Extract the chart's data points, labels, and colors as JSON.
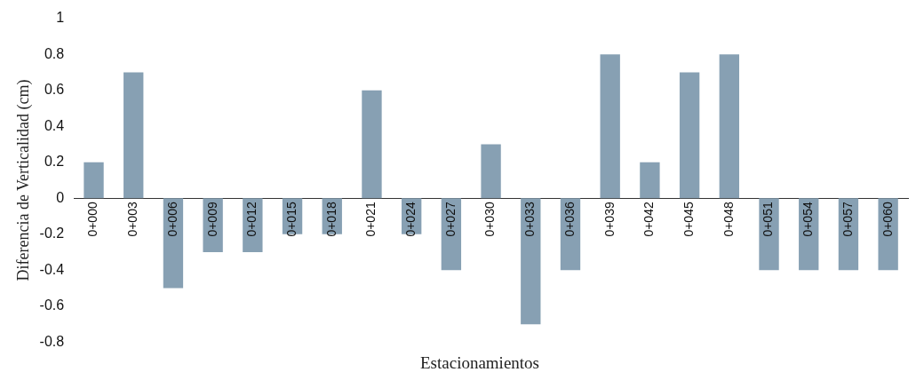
{
  "chart_data": {
    "type": "bar",
    "xlabel": "Estacionamientos",
    "ylabel": "Diferencia de Verticalidad (cm)",
    "categories": [
      "0+000",
      "0+003",
      "0+006",
      "0+009",
      "0+012",
      "0+015",
      "0+018",
      "0+021",
      "0+024",
      "0+027",
      "0+030",
      "0+033",
      "0+036",
      "0+039",
      "0+042",
      "0+045",
      "0+048",
      "0+051",
      "0+054",
      "0+057",
      "0+060"
    ],
    "values": [
      0.2,
      0.7,
      -0.5,
      -0.3,
      -0.3,
      -0.2,
      -0.2,
      0.6,
      -0.2,
      -0.4,
      0.3,
      -0.7,
      -0.4,
      0.8,
      0.2,
      0.7,
      0.8,
      -0.4,
      -0.4,
      -0.4,
      -0.4
    ],
    "color": "#87a0b3",
    "ylim": [
      -0.8,
      1
    ],
    "yticks": [
      -0.8,
      -0.6,
      -0.4,
      -0.2,
      0,
      0.2,
      0.4,
      0.6,
      0.8,
      1
    ],
    "grid": false,
    "legend": false
  }
}
